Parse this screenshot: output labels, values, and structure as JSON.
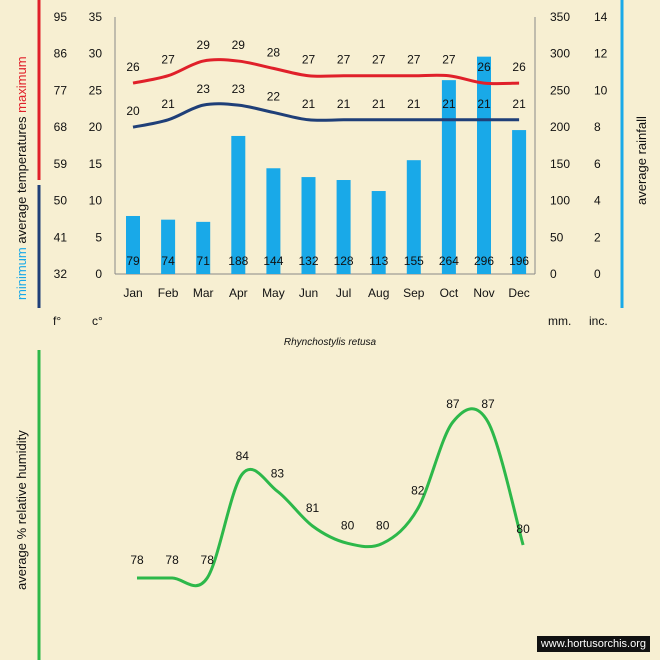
{
  "chart_data": [
    {
      "type": "bar+line",
      "title": "Rhynchostylis retusa",
      "categories": [
        "Jan",
        "Feb",
        "Mar",
        "Apr",
        "May",
        "Jun",
        "Jul",
        "Aug",
        "Sep",
        "Oct",
        "Nov",
        "Dec"
      ],
      "series": [
        {
          "name": "maximum temperature (c°)",
          "type": "line",
          "color": "#e0202a",
          "values": [
            26,
            27,
            29,
            29,
            28,
            27,
            27,
            27,
            27,
            27,
            26,
            26
          ]
        },
        {
          "name": "minimum temperature (c°)",
          "type": "line",
          "color": "#1f3f78",
          "values": [
            20,
            21,
            23,
            23,
            22,
            21,
            21,
            21,
            21,
            21,
            21,
            21
          ]
        },
        {
          "name": "average rainfall (mm.)",
          "type": "bar",
          "color": "#19a9e8",
          "values": [
            79,
            74,
            71,
            188,
            144,
            132,
            128,
            113,
            155,
            264,
            296,
            196
          ]
        }
      ],
      "left_axis_fahrenheit": {
        "ticks": [
          "95",
          "86",
          "77",
          "68",
          "59",
          "50",
          "41",
          "32"
        ],
        "unit": "f°"
      },
      "left_axis_celsius": {
        "ticks": [
          "35",
          "30",
          "25",
          "20",
          "15",
          "10",
          "5",
          "0"
        ],
        "unit": "c°",
        "ylim": [
          0,
          35
        ]
      },
      "right_axis_mm": {
        "ticks": [
          "350",
          "300",
          "250",
          "200",
          "150",
          "100",
          "50",
          "0"
        ],
        "unit": "mm.",
        "ylim": [
          0,
          350
        ]
      },
      "right_axis_inches": {
        "ticks": [
          "14",
          "12",
          "10",
          "8",
          "6",
          "4",
          "2",
          "0"
        ],
        "unit": "inc."
      },
      "ylabel_left": {
        "maximum": "maximum",
        "average": "average",
        "temperatures": "temperatures",
        "minimum": "minimum"
      },
      "ylabel_right": "average rainfall"
    },
    {
      "type": "line",
      "categories": [
        "Jan",
        "Feb",
        "Mar",
        "Apr",
        "May",
        "Jun",
        "Jul",
        "Aug",
        "Sep",
        "Oct",
        "Nov",
        "Dec"
      ],
      "series": [
        {
          "name": "average % relative humidity",
          "color": "#2db84a",
          "values": [
            78,
            78,
            78,
            84,
            83,
            81,
            80,
            80,
            82,
            87,
            87,
            80
          ]
        }
      ],
      "ylabel": "average %  relative humidity"
    }
  ],
  "colors": {
    "background": "#f7efd2",
    "max_line": "#e0202a",
    "min_line": "#1f3f78",
    "rain_bar": "#19a9e8",
    "humidity_line": "#2db84a"
  },
  "watermark": "www.hortusorchis.org"
}
